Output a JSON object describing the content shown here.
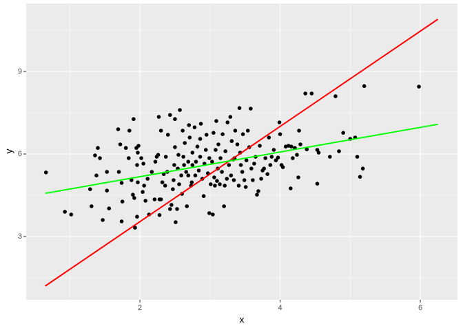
{
  "chart_data": {
    "type": "scatter",
    "xlabel": "x",
    "ylabel": "y",
    "xlim": [
      0.378,
      6.53
    ],
    "ylim": [
      0.7,
      11.475
    ],
    "xticks": [
      2,
      4,
      6
    ],
    "yticks": [
      3,
      6,
      9
    ],
    "grid": true,
    "points": {
      "color": "#000000",
      "x": [
        0.66,
        0.93,
        1.02,
        1.29,
        1.31,
        1.36,
        1.4,
        1.43,
        1.38,
        1.47,
        1.53,
        1.53,
        1.56,
        1.69,
        1.72,
        1.7,
        1.74,
        1.75,
        1.74,
        1.8,
        1.84,
        1.85,
        1.88,
        1.9,
        1.91,
        1.92,
        1.93,
        1.95,
        1.96,
        1.97,
        1.98,
        1.97,
        1.96,
        2.02,
        2.05,
        2.04,
        2.06,
        2.08,
        2.11,
        2.13,
        2.17,
        2.21,
        2.22,
        2.24,
        2.26,
        2.27,
        2.28,
        2.28,
        2.3,
        2.3,
        2.32,
        2.34,
        2.36,
        2.37,
        2.39,
        2.4,
        2.43,
        2.43,
        2.45,
        2.47,
        2.48,
        2.49,
        2.5,
        2.5,
        2.51,
        2.53,
        2.54,
        2.55,
        2.57,
        2.56,
        2.59,
        2.6,
        2.61,
        2.62,
        2.63,
        2.64,
        2.66,
        2.67,
        2.69,
        2.69,
        2.7,
        2.71,
        2.73,
        2.74,
        2.75,
        2.75,
        2.78,
        2.79,
        2.8,
        2.82,
        2.84,
        2.86,
        2.86,
        2.87,
        2.89,
        2.91,
        2.92,
        2.94,
        2.95,
        2.97,
        2.99,
        2.99,
        3.01,
        3.03,
        3.04,
        3.05,
        3.06,
        3.07,
        3.08,
        3.09,
        3.1,
        3.11,
        3.12,
        3.14,
        3.15,
        3.17,
        3.18,
        3.2,
        3.21,
        3.22,
        3.24,
        3.25,
        3.27,
        3.29,
        3.3,
        3.31,
        3.33,
        3.34,
        3.35,
        3.36,
        3.39,
        3.41,
        3.42,
        3.43,
        3.44,
        3.46,
        3.47,
        3.49,
        3.51,
        3.52,
        3.54,
        3.56,
        3.58,
        3.59,
        3.61,
        3.63,
        3.65,
        3.67,
        3.69,
        3.71,
        3.73,
        3.75,
        3.77,
        3.79,
        3.82,
        3.84,
        3.86,
        3.88,
        3.91,
        3.94,
        3.97,
        3.99,
        4.0,
        4.02,
        4.04,
        4.08,
        4.12,
        4.15,
        4.16,
        4.18,
        4.21,
        4.24,
        4.26,
        4.27,
        4.29,
        4.36,
        4.38,
        4.45,
        4.53,
        4.53,
        4.55,
        4.71,
        4.79,
        4.84,
        4.9,
        5.0,
        5.07,
        5.1,
        5.14,
        5.18,
        5.2,
        5.98
      ],
      "y": [
        5.33,
        3.9,
        3.8,
        4.72,
        4.1,
        5.95,
        6.22,
        5.85,
        5.22,
        3.6,
        5.35,
        4.67,
        4.02,
        6.9,
        6.35,
        5.35,
        4.95,
        4.27,
        3.55,
        6.22,
        5.85,
        6.85,
        5.05,
        4.52,
        7.27,
        4.4,
        3.32,
        6.22,
        5.6,
        6.05,
        6.3,
        4.97,
        3.72,
        5.85,
        5.65,
        4.62,
        4.85,
        4.3,
        5.1,
        3.8,
        5.35,
        4.35,
        5.72,
        5.9,
        5.97,
        7.35,
        4.35,
        3.78,
        4.35,
        6.85,
        4.97,
        5.27,
        4.85,
        5.9,
        5.35,
        6.7,
        7.42,
        4.0,
        4.15,
        4.72,
        5.05,
        5.6,
        6.25,
        7.27,
        3.52,
        4.0,
        5.47,
        5.97,
        7.6,
        4.9,
        5.22,
        4.55,
        6.85,
        5.9,
        5.6,
        6.4,
        5.35,
        4.1,
        5.22,
        5.72,
        7.05,
        6.6,
        4.85,
        4.97,
        5.6,
        6.05,
        6.97,
        5.22,
        5.72,
        6.27,
        5.4,
        5.9,
        6.55,
        7.1,
        5.1,
        4.47,
        5.65,
        6.15,
        6.7,
        5.3,
        5.85,
        3.85,
        4.9,
        5.72,
        3.8,
        6.77,
        5.15,
        4.85,
        6.15,
        7.2,
        5.02,
        5.47,
        6.35,
        4.9,
        5.85,
        5.35,
        6.72,
        4.1,
        4.85,
        6.1,
        5.1,
        7.15,
        5.6,
        7.35,
        5.22,
        6.47,
        5.8,
        5.05,
        5.85,
        6.85,
        6.35,
        4.85,
        7.67,
        6.05,
        5.6,
        5.35,
        6.72,
        5.05,
        4.8,
        5.77,
        6.85,
        6.25,
        7.65,
        5.47,
        5.05,
        5.65,
        5.9,
        4.52,
        4.65,
        6.3,
        5.1,
        5.4,
        5.47,
        5.85,
        5.27,
        6.6,
        5.6,
        5.9,
        6.15,
        5.77,
        5.87,
        7.15,
        6.72,
        5.6,
        5.52,
        6.27,
        6.3,
        4.75,
        6.27,
        5.85,
        6.22,
        5.97,
        5.15,
        6.85,
        6.35,
        8.2,
        6.17,
        8.2,
        6.15,
        4.92,
        6.05,
        5.9,
        8.1,
        6.1,
        6.77,
        6.55,
        6.6,
        5.9,
        5.17,
        5.47,
        8.47,
        8.45
      ]
    },
    "lines": [
      {
        "color": "#ff0000",
        "x": [
          0.65,
          6.25
        ],
        "y": [
          1.2,
          10.9
        ]
      },
      {
        "color": "#00ff00",
        "x": [
          0.65,
          6.25
        ],
        "y": [
          4.57,
          7.08
        ]
      }
    ]
  }
}
